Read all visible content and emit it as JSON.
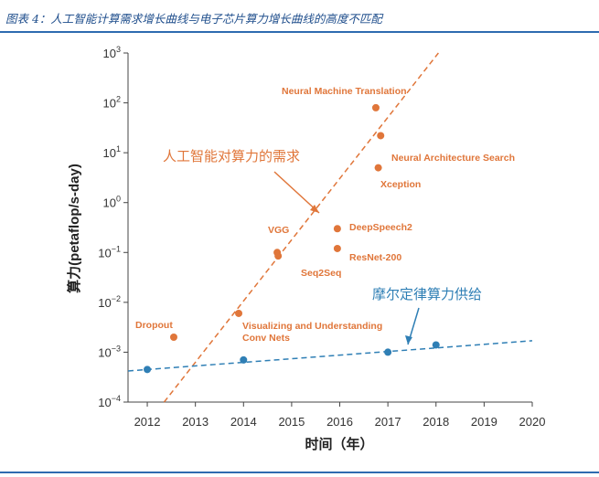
{
  "caption": "图表 4：人工智能计算需求增长曲线与电子芯片算力增长曲线的高度不匹配",
  "colors": {
    "orange": "#e0763a",
    "blue": "#2f7fb5",
    "caption": "#1f4e8c",
    "rule": "#2e6bb0"
  },
  "chart_data": {
    "type": "scatter",
    "title": "",
    "xlabel": "时间（年）",
    "ylabel": "算力(petaflop/s-day)",
    "x_scale": "linear",
    "y_scale": "log",
    "xlim": [
      2011.6,
      2020
    ],
    "ylim": [
      0.0001,
      1000
    ],
    "x_ticks": [
      "2012",
      "2013",
      "2014",
      "2015",
      "2016",
      "2017",
      "2018",
      "2019",
      "2020"
    ],
    "x_tick_values": [
      2012,
      2013,
      2014,
      2015,
      2016,
      2017,
      2018,
      2019,
      2020
    ],
    "y_tick_values": [
      0.0001,
      0.001,
      0.01,
      0.1,
      1,
      10,
      100,
      1000
    ],
    "y_ticks": [
      {
        "base": "10",
        "exp": "−4"
      },
      {
        "base": "10",
        "exp": "−3"
      },
      {
        "base": "10",
        "exp": "−2"
      },
      {
        "base": "10",
        "exp": "−1"
      },
      {
        "base": "10",
        "exp": "0"
      },
      {
        "base": "10",
        "exp": "1"
      },
      {
        "base": "10",
        "exp": "2"
      },
      {
        "base": "10",
        "exp": "3"
      }
    ],
    "grid": false,
    "series": [
      {
        "name": "人工智能对算力的需求",
        "color": "#e0763a",
        "points": [
          {
            "label": "Dropout",
            "x": 2012.55,
            "y": 0.002
          },
          {
            "label": "Visualizing and Understanding Conv Nets",
            "x": 2013.9,
            "y": 0.006
          },
          {
            "label": "VGG",
            "x": 2014.7,
            "y": 0.1
          },
          {
            "label": "Seq2Seq",
            "x": 2014.72,
            "y": 0.085
          },
          {
            "label": "DeepSpeech2",
            "x": 2015.95,
            "y": 0.3
          },
          {
            "label": "ResNet-200",
            "x": 2015.95,
            "y": 0.12
          },
          {
            "label": "Neural Machine Translation",
            "x": 2016.75,
            "y": 80
          },
          {
            "label": "Neural Architecture Search",
            "x": 2016.85,
            "y": 22
          },
          {
            "label": "Xception",
            "x": 2016.8,
            "y": 5
          }
        ],
        "trend": {
          "from": {
            "x": 2012.35,
            "y": 0.0001
          },
          "to": {
            "x": 2018.05,
            "y": 1000
          }
        }
      },
      {
        "name": "摩尔定律算力供给",
        "color": "#2f7fb5",
        "points": [
          {
            "x": 2012.0,
            "y": 0.00045
          },
          {
            "x": 2014.0,
            "y": 0.0007
          },
          {
            "x": 2017.0,
            "y": 0.001
          },
          {
            "x": 2018.0,
            "y": 0.0014
          }
        ],
        "trend": {
          "from": {
            "x": 2011.6,
            "y": 0.00042
          },
          "to": {
            "x": 2020,
            "y": 0.0017
          }
        }
      }
    ]
  }
}
